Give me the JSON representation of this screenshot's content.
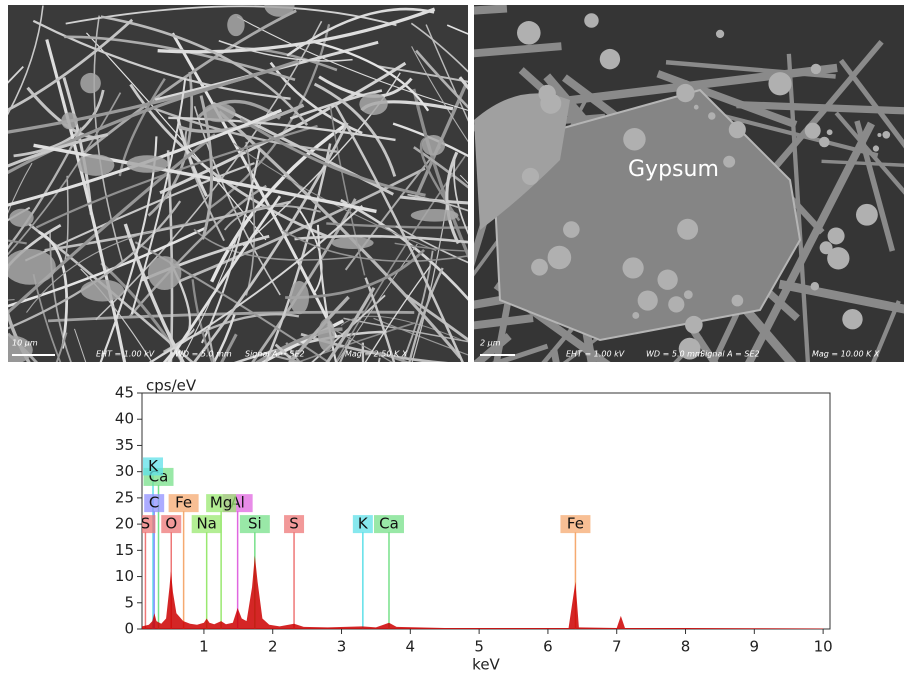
{
  "images": [
    {
      "scale_bar": "10 µm",
      "eht": "EHT = 1.00 kV",
      "wd": "WD = 5.0 mm",
      "signal": "Signal A = SE2",
      "mag": "Mag = 2.50 K X"
    },
    {
      "scale_bar": "2 µm",
      "eht": "EHT = 1.00 kV",
      "wd": "WD = 5.0 mm",
      "signal": "Signal A = SE2",
      "mag": "Mag = 10.00 K X",
      "annotation": "Gypsum"
    }
  ],
  "chart_data": {
    "type": "line",
    "y_label": "cps/eV",
    "x_label": "keV",
    "xlim": [
      0.1,
      10.1
    ],
    "ylim": [
      0,
      45
    ],
    "xticks": [
      1,
      2,
      3,
      4,
      5,
      6,
      7,
      8,
      9,
      10
    ],
    "yticks": [
      0,
      5,
      10,
      15,
      20,
      25,
      30,
      35,
      40,
      45
    ],
    "x": [
      0.1,
      0.2,
      0.25,
      0.28,
      0.31,
      0.38,
      0.45,
      0.5,
      0.52,
      0.55,
      0.6,
      0.7,
      0.8,
      0.9,
      1.0,
      1.04,
      1.08,
      1.15,
      1.25,
      1.32,
      1.42,
      1.49,
      1.55,
      1.62,
      1.7,
      1.74,
      1.78,
      1.85,
      1.95,
      2.1,
      2.31,
      2.45,
      2.8,
      3.3,
      3.5,
      3.69,
      3.8,
      4.5,
      5.5,
      6.3,
      6.4,
      6.45,
      7.0,
      7.06,
      7.12,
      8.0,
      9.0,
      10.0
    ],
    "series": [
      {
        "color": "#cc0000",
        "values": [
          0.5,
          0.8,
          1.5,
          3,
          1.5,
          1,
          2,
          8,
          11,
          7,
          3,
          1.5,
          1,
          0.8,
          1.2,
          2,
          1.2,
          0.9,
          1.5,
          0.9,
          1.2,
          4,
          2,
          1.5,
          8,
          14,
          9,
          2,
          0.8,
          0.5,
          1,
          0.4,
          0.3,
          0.5,
          0.3,
          1.2,
          0.4,
          0.2,
          0.2,
          0.2,
          9,
          0.3,
          0.2,
          2.5,
          0.2,
          0.2,
          0.15,
          0.1
        ]
      }
    ],
    "markers": [
      {
        "label": "Ca",
        "energy": 0.34,
        "level": 29,
        "color": "#77e08a"
      },
      {
        "label": "K",
        "energy": 0.26,
        "level": 31,
        "color": "#5fe0e8"
      },
      {
        "label": "S",
        "energy": 0.15,
        "level": 20,
        "color": "#ee7777"
      },
      {
        "label": "C",
        "energy": 0.277,
        "level": 24,
        "color": "#9090ff"
      },
      {
        "label": "O",
        "energy": 0.525,
        "level": 20,
        "color": "#ee7777"
      },
      {
        "label": "Fe",
        "energy": 0.705,
        "level": 24,
        "color": "#f5aa70"
      },
      {
        "label": "Na",
        "energy": 1.04,
        "level": 20,
        "color": "#99e870"
      },
      {
        "label": "Al",
        "energy": 1.49,
        "level": 24,
        "color": "#e066e0"
      },
      {
        "label": "Mg",
        "energy": 1.25,
        "level": 24,
        "color": "#99e870"
      },
      {
        "label": "Si",
        "energy": 1.74,
        "level": 20,
        "color": "#77e08a"
      },
      {
        "label": "S",
        "energy": 2.31,
        "level": 20,
        "color": "#ee7777"
      },
      {
        "label": "K",
        "energy": 3.31,
        "level": 20,
        "color": "#5fe0e8"
      },
      {
        "label": "Ca",
        "energy": 3.69,
        "level": 20,
        "color": "#77e08a"
      },
      {
        "label": "Fe",
        "energy": 6.4,
        "level": 20,
        "color": "#f5aa70"
      }
    ]
  }
}
